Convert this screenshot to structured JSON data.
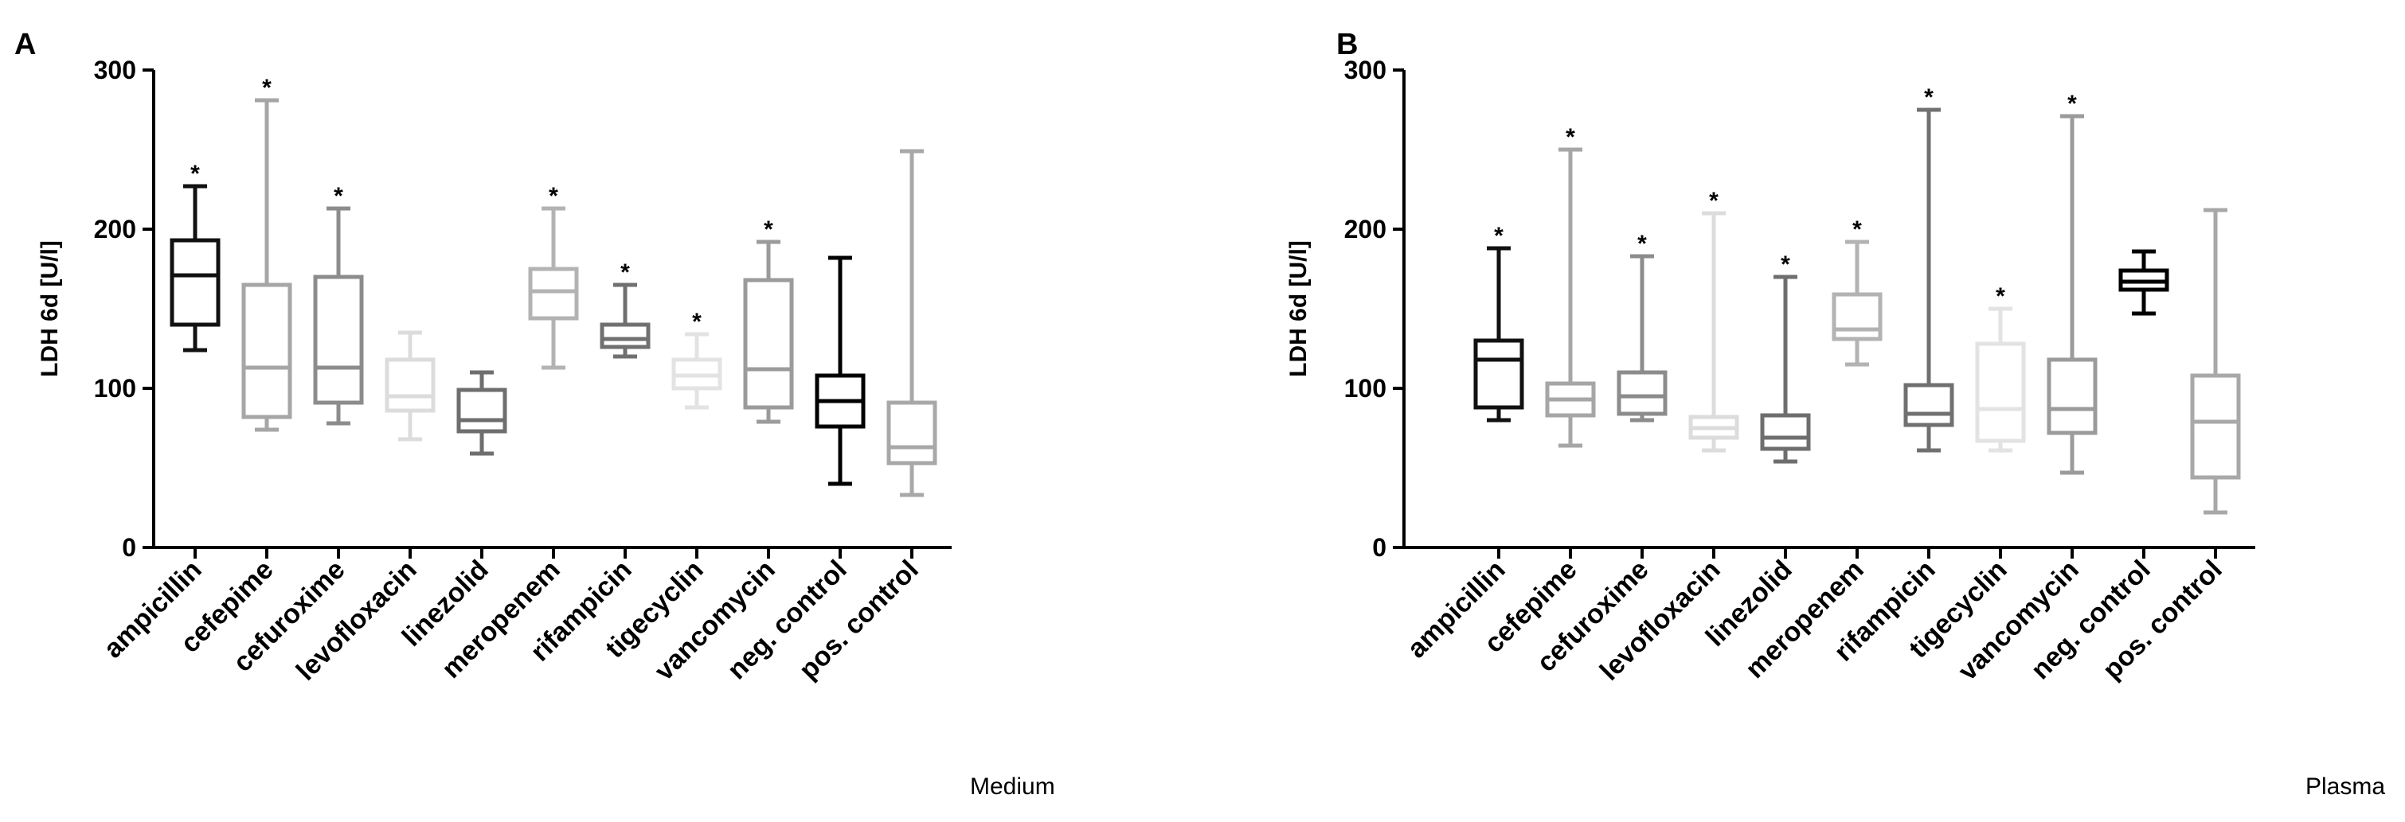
{
  "chart_data": [
    {
      "type": "boxplot",
      "panel_label": "A",
      "ylabel": "LDH 6d [U/l]",
      "ylim": [
        0,
        300
      ],
      "yticks": [
        0,
        100,
        200,
        300
      ],
      "caption": "Medium",
      "significance_marker": "*",
      "categories": [
        "ampicillin",
        "cefepime",
        "cefuroxime",
        "levofloxacin",
        "linezolid",
        "meropenem",
        "rifampicin",
        "tigecyclin",
        "vancomycin",
        "neg. control",
        "pos. control"
      ],
      "colors": [
        "#111111",
        "#a6a6a6",
        "#8c8c8c",
        "#dcdcdc",
        "#6e6e6e",
        "#b3b3b3",
        "#707070",
        "#e3e3e3",
        "#9b9b9b",
        "#000000",
        "#a8a8a8"
      ],
      "boxes": [
        {
          "min": 124,
          "q1": 140,
          "median": 171,
          "q3": 193,
          "max": 227,
          "significant": true
        },
        {
          "min": 74,
          "q1": 82,
          "median": 113,
          "q3": 165,
          "max": 281,
          "significant": true
        },
        {
          "min": 78,
          "q1": 91,
          "median": 113,
          "q3": 170,
          "max": 213,
          "significant": true
        },
        {
          "min": 68,
          "q1": 86,
          "median": 95,
          "q3": 118,
          "max": 135,
          "significant": false
        },
        {
          "min": 59,
          "q1": 73,
          "median": 80,
          "q3": 99,
          "max": 110,
          "significant": false
        },
        {
          "min": 113,
          "q1": 144,
          "median": 161,
          "q3": 175,
          "max": 213,
          "significant": true
        },
        {
          "min": 120,
          "q1": 126,
          "median": 131,
          "q3": 140,
          "max": 165,
          "significant": true
        },
        {
          "min": 88,
          "q1": 100,
          "median": 108,
          "q3": 118,
          "max": 134,
          "significant": true
        },
        {
          "min": 79,
          "q1": 88,
          "median": 112,
          "q3": 168,
          "max": 192,
          "significant": true
        },
        {
          "min": 40,
          "q1": 76,
          "median": 92,
          "q3": 108,
          "max": 182,
          "significant": false
        },
        {
          "min": 33,
          "q1": 53,
          "median": 63,
          "q3": 91,
          "max": 249,
          "significant": false
        }
      ]
    },
    {
      "type": "boxplot",
      "panel_label": "B",
      "ylabel": "LDH 6d [U/l]",
      "ylim": [
        0,
        300
      ],
      "yticks": [
        0,
        100,
        200,
        300
      ],
      "caption": "Plasma",
      "significance_marker": "*",
      "categories": [
        "ampicillin",
        "cefepime",
        "cefuroxime",
        "levofloxacin",
        "linezolid",
        "meropenem",
        "rifampicin",
        "tigecyclin",
        "vancomycin",
        "neg. control",
        "pos. control"
      ],
      "colors": [
        "#111111",
        "#a6a6a6",
        "#8c8c8c",
        "#dcdcdc",
        "#6e6e6e",
        "#b3b3b3",
        "#707070",
        "#e3e3e3",
        "#9b9b9b",
        "#000000",
        "#a8a8a8"
      ],
      "boxes": [
        {
          "min": 80,
          "q1": 88,
          "median": 118,
          "q3": 130,
          "max": 188,
          "significant": true
        },
        {
          "min": 64,
          "q1": 83,
          "median": 93,
          "q3": 103,
          "max": 250,
          "significant": true
        },
        {
          "min": 80,
          "q1": 84,
          "median": 95,
          "q3": 110,
          "max": 183,
          "significant": true
        },
        {
          "min": 61,
          "q1": 69,
          "median": 75,
          "q3": 82,
          "max": 210,
          "significant": true
        },
        {
          "min": 54,
          "q1": 62,
          "median": 69,
          "q3": 83,
          "max": 170,
          "significant": true
        },
        {
          "min": 115,
          "q1": 131,
          "median": 137,
          "q3": 159,
          "max": 192,
          "significant": true
        },
        {
          "min": 61,
          "q1": 77,
          "median": 84,
          "q3": 102,
          "max": 275,
          "significant": true
        },
        {
          "min": 61,
          "q1": 67,
          "median": 87,
          "q3": 128,
          "max": 150,
          "significant": true
        },
        {
          "min": 47,
          "q1": 72,
          "median": 87,
          "q3": 118,
          "max": 271,
          "significant": true
        },
        {
          "min": 147,
          "q1": 162,
          "median": 167,
          "q3": 174,
          "max": 186,
          "significant": false
        },
        {
          "min": 22,
          "q1": 44,
          "median": 79,
          "q3": 108,
          "max": 212,
          "significant": false
        }
      ]
    }
  ]
}
